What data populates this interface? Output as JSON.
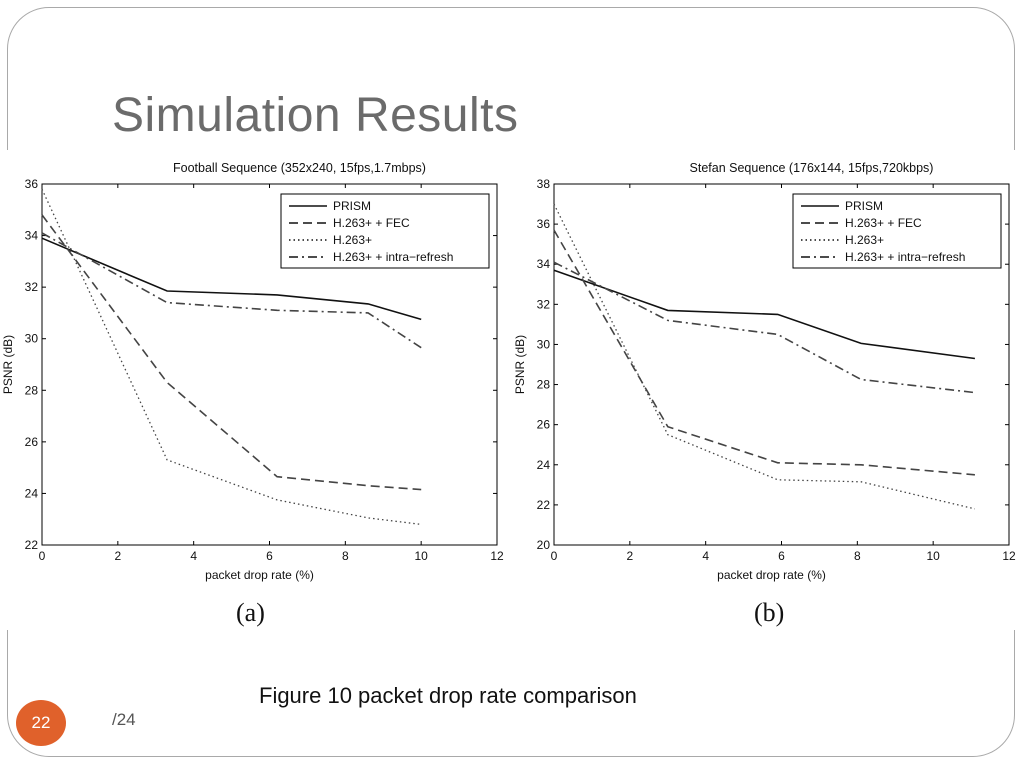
{
  "slide": {
    "title": "Simulation Results",
    "caption": "Figure 10 packet drop rate comparison",
    "page_number": "22",
    "page_total": "/24",
    "badge_color": "#e0612b",
    "subfigure_labels": [
      "(a)",
      "(b)"
    ]
  },
  "chart_data": [
    {
      "type": "line",
      "title": "Football Sequence (352x240, 15fps,1.7mbps)",
      "xlabel": "packet drop rate (%)",
      "ylabel": "PSNR (dB)",
      "xlim": [
        0,
        12
      ],
      "ylim": [
        22,
        36
      ],
      "xticks": [
        0,
        2,
        4,
        6,
        8,
        10,
        12
      ],
      "yticks": [
        22,
        24,
        26,
        28,
        30,
        32,
        34,
        36
      ],
      "legend_position": "top-right",
      "grid": false,
      "series": [
        {
          "name": "PRISM",
          "dash": "solid",
          "points": [
            [
              0,
              33.9
            ],
            [
              3.3,
              31.85
            ],
            [
              6.2,
              31.7
            ],
            [
              8.6,
              31.35
            ],
            [
              10,
              30.75
            ]
          ]
        },
        {
          "name": "H.263+ + FEC",
          "dash": "dashed",
          "points": [
            [
              0,
              34.8
            ],
            [
              3.3,
              28.3
            ],
            [
              6.2,
              24.65
            ],
            [
              8.6,
              24.3
            ],
            [
              10,
              24.15
            ]
          ]
        },
        {
          "name": "H.263+",
          "dash": "dotted",
          "points": [
            [
              0,
              35.8
            ],
            [
              3.3,
              25.3
            ],
            [
              6.2,
              23.75
            ],
            [
              8.6,
              23.05
            ],
            [
              10,
              22.8
            ]
          ]
        },
        {
          "name": "H.263+ + intra−refresh",
          "dash": "dashdot",
          "points": [
            [
              0,
              34.1
            ],
            [
              3.3,
              31.4
            ],
            [
              6.2,
              31.1
            ],
            [
              8.6,
              31.0
            ],
            [
              10,
              29.65
            ]
          ]
        }
      ]
    },
    {
      "type": "line",
      "title": "Stefan Sequence (176x144, 15fps,720kbps)",
      "xlabel": "packet drop rate (%)",
      "ylabel": "PSNR (dB)",
      "xlim": [
        0,
        12
      ],
      "ylim": [
        20,
        38
      ],
      "xticks": [
        0,
        2,
        4,
        6,
        8,
        10,
        12
      ],
      "yticks": [
        20,
        22,
        24,
        26,
        28,
        30,
        32,
        34,
        36,
        38
      ],
      "legend_position": "top-right",
      "grid": false,
      "series": [
        {
          "name": "PRISM",
          "dash": "solid",
          "points": [
            [
              0,
              33.7
            ],
            [
              3.0,
              31.7
            ],
            [
              5.9,
              31.5
            ],
            [
              8.1,
              30.05
            ],
            [
              11.1,
              29.3
            ]
          ]
        },
        {
          "name": "H.263+ + FEC",
          "dash": "dashed",
          "points": [
            [
              0,
              35.7
            ],
            [
              3.0,
              25.9
            ],
            [
              5.9,
              24.1
            ],
            [
              8.1,
              24.0
            ],
            [
              11.1,
              23.5
            ]
          ]
        },
        {
          "name": "H.263+",
          "dash": "dotted",
          "points": [
            [
              0,
              37.0
            ],
            [
              3.0,
              25.5
            ],
            [
              5.9,
              23.25
            ],
            [
              8.1,
              23.15
            ],
            [
              11.1,
              21.8
            ]
          ]
        },
        {
          "name": "H.263+ + intra−refresh",
          "dash": "dashdot",
          "points": [
            [
              0,
              34.1
            ],
            [
              3.0,
              31.2
            ],
            [
              5.9,
              30.5
            ],
            [
              8.1,
              28.25
            ],
            [
              11.1,
              27.6
            ]
          ]
        }
      ]
    }
  ]
}
